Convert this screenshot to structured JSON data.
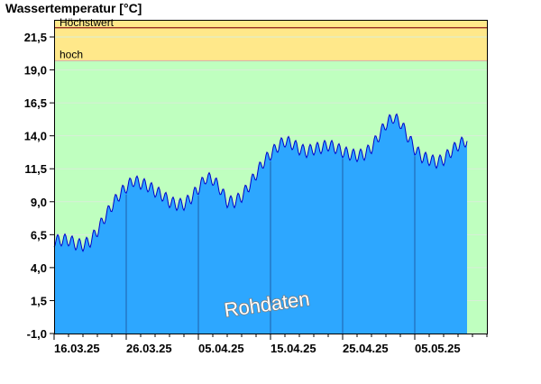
{
  "chart_data": {
    "type": "area",
    "ylabel": "Wassertemperatur [°C]",
    "ylim": [
      -1.0,
      22.8
    ],
    "yticks": [
      "-1,0",
      "1,5",
      "4,0",
      "6,5",
      "9,0",
      "11,5",
      "14,0",
      "16,5",
      "19,0",
      "21,5"
    ],
    "xticks": [
      "16.03.25",
      "26.03.25",
      "05.04.25",
      "15.04.25",
      "25.04.25",
      "05.05.25"
    ],
    "bands": [
      {
        "label": "Höchstwert",
        "from": 22.2,
        "to": 22.2,
        "color": "#8b1a1a"
      },
      {
        "label": "hoch",
        "from": 19.7,
        "to": 22.2,
        "color": "#ffe88a"
      },
      {
        "label": "",
        "from": -1.0,
        "to": 19.7,
        "color": "#bfffbf"
      }
    ],
    "watermark": "Rohdaten",
    "fill_color": "#2da7ff",
    "line_color": "#0000cc",
    "day_values": [
      6.0,
      6.1,
      6.1,
      5.8,
      5.7,
      6.0,
      6.8,
      7.8,
      8.7,
      9.5,
      10.1,
      10.6,
      10.4,
      10.2,
      9.8,
      9.5,
      9.0,
      8.8,
      8.8,
      9.3,
      10.0,
      10.8,
      10.7,
      10.0,
      9.0,
      9.0,
      9.4,
      10.2,
      11.1,
      12.0,
      12.6,
      13.2,
      13.6,
      13.4,
      13.0,
      12.8,
      13.0,
      13.1,
      13.3,
      13.1,
      12.8,
      12.6,
      12.5,
      12.6,
      13.1,
      14.0,
      14.9,
      15.4,
      15.0,
      14.0,
      13.0,
      12.4,
      12.2,
      12.0,
      12.2,
      12.8,
      13.3,
      13.6
    ],
    "daily_amplitude": 0.45
  }
}
